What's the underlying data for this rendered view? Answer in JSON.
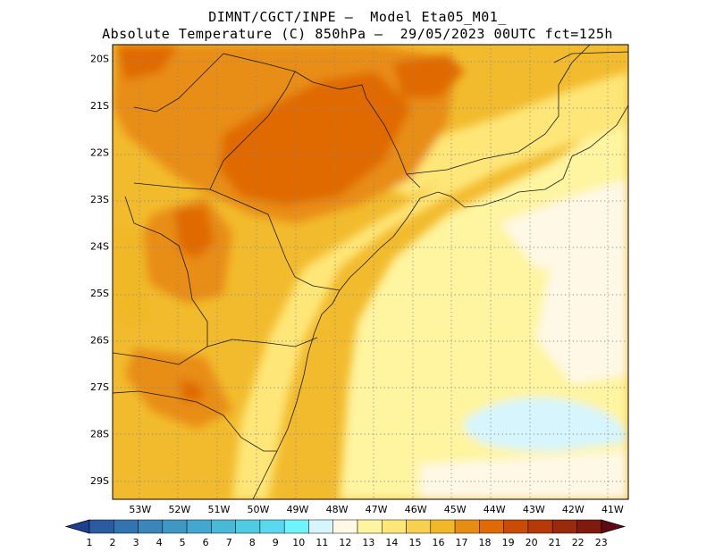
{
  "header": {
    "line1": "DIMNT/CGCT/INPE –  Model Eta05_M01_",
    "line2": "Absolute Temperature (C) 850hPa –  29/05/2023 00UTC fct=125h"
  },
  "map": {
    "lat_labels": [
      "20S",
      "21S",
      "22S",
      "23S",
      "24S",
      "25S",
      "26S",
      "27S",
      "28S",
      "29S"
    ],
    "lon_labels": [
      "53W",
      "52W",
      "51W",
      "50W",
      "49W",
      "48W",
      "47W",
      "46W",
      "45W",
      "44W",
      "43W",
      "42W",
      "41W"
    ],
    "lat_range": [
      -19.7,
      -29.4
    ],
    "lon_range": [
      -53.7,
      -40.6
    ],
    "grid_style": "dotted"
  },
  "colorbar": {
    "labels": [
      "1",
      "2",
      "3",
      "4",
      "5",
      "6",
      "7",
      "8",
      "9",
      "10",
      "11",
      "12",
      "13",
      "14",
      "15",
      "16",
      "17",
      "18",
      "19",
      "20",
      "21",
      "22",
      "23"
    ],
    "colors": [
      "#1f3f8f",
      "#2a5aa0",
      "#3274b0",
      "#3a86bb",
      "#3f97c4",
      "#43a7cf",
      "#48b9d9",
      "#4fcbe4",
      "#5ad9ee",
      "#6ef4fb",
      "#d6f5fd",
      "#fff8e6",
      "#fff4a0",
      "#fee678",
      "#f7d050",
      "#f1b827",
      "#e88d14",
      "#e06a05",
      "#c84c05",
      "#b53a08",
      "#9a2a0b",
      "#801a0f",
      "#5e0a14"
    ]
  }
}
